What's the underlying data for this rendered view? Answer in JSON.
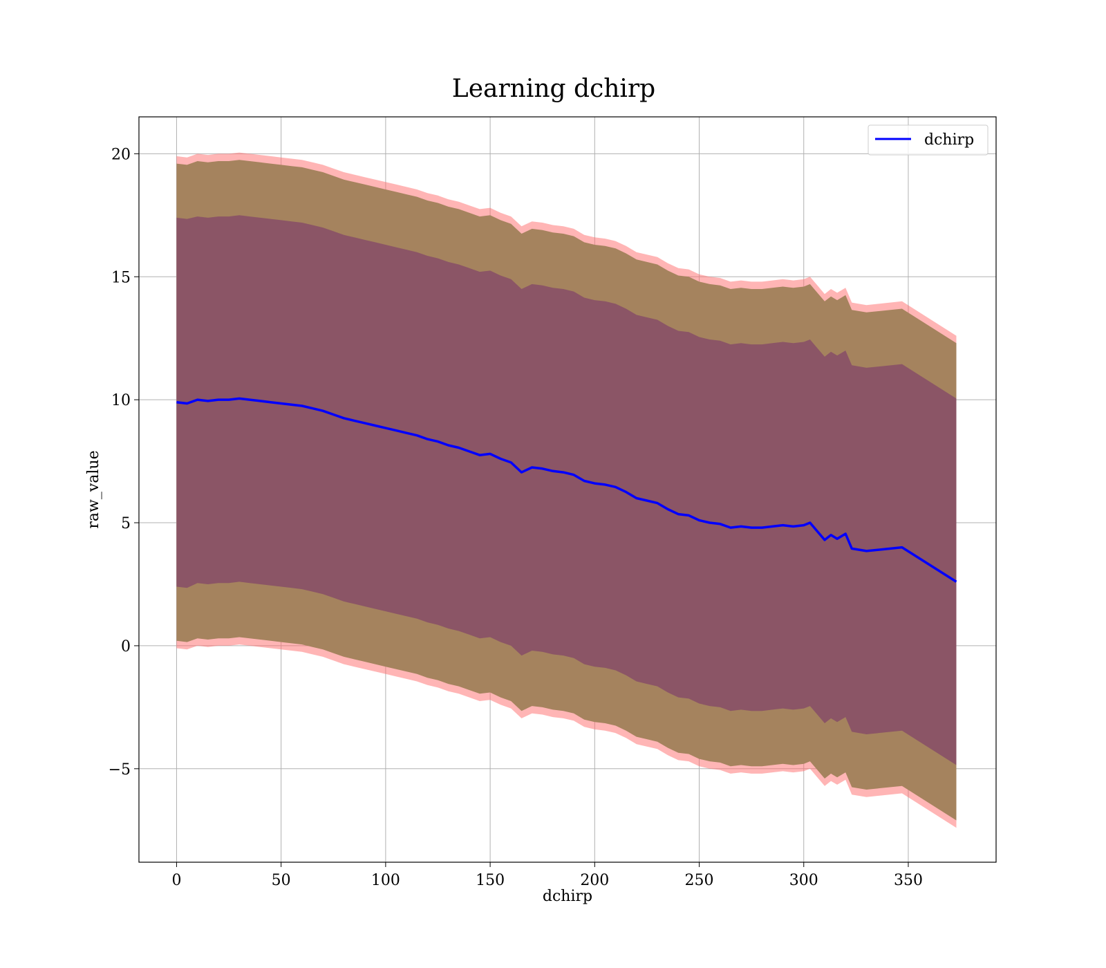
{
  "chart_data": {
    "type": "area",
    "title": "Learning dchirp",
    "xlabel": "dchirp",
    "ylabel": "raw_value",
    "xlim": [
      -18,
      392
    ],
    "ylim": [
      -8.8,
      21.5
    ],
    "xticks": [
      0,
      50,
      100,
      150,
      200,
      250,
      300,
      350
    ],
    "yticks": [
      -5,
      0,
      5,
      10,
      15,
      20
    ],
    "ytick_labels": [
      "−5",
      "0",
      "5",
      "10",
      "15",
      "20"
    ],
    "grid": true,
    "legend": {
      "position": "top-right",
      "entries": [
        "dchirp"
      ]
    },
    "colors": {
      "line": "#0000ff",
      "band_3sigma": "#ff6b6b",
      "band_2sigma": "#a5835e",
      "band_1sigma": "#8b5566",
      "grid": "#b0b0b0"
    },
    "series": [
      {
        "name": "dchirp",
        "x": [
          0,
          5,
          10,
          15,
          20,
          25,
          30,
          35,
          40,
          45,
          50,
          55,
          60,
          65,
          70,
          75,
          80,
          85,
          90,
          95,
          100,
          105,
          110,
          115,
          120,
          125,
          130,
          135,
          140,
          145,
          150,
          155,
          160,
          165,
          170,
          175,
          180,
          185,
          190,
          195,
          200,
          205,
          210,
          215,
          220,
          225,
          230,
          235,
          240,
          245,
          250,
          255,
          260,
          265,
          270,
          275,
          280,
          285,
          290,
          295,
          300,
          303,
          306,
          310,
          313,
          316,
          320,
          323,
          330,
          347,
          373
        ],
        "mean": [
          9.9,
          9.85,
          10.0,
          9.95,
          10.0,
          10.0,
          10.05,
          10.0,
          9.95,
          9.9,
          9.85,
          9.8,
          9.75,
          9.65,
          9.55,
          9.4,
          9.25,
          9.15,
          9.05,
          8.95,
          8.85,
          8.75,
          8.65,
          8.55,
          8.4,
          8.3,
          8.15,
          8.05,
          7.9,
          7.75,
          7.8,
          7.6,
          7.45,
          7.05,
          7.25,
          7.2,
          7.1,
          7.05,
          6.95,
          6.7,
          6.6,
          6.55,
          6.45,
          6.25,
          6.0,
          5.9,
          5.8,
          5.55,
          5.35,
          5.3,
          5.1,
          5.0,
          4.95,
          4.8,
          4.85,
          4.8,
          4.8,
          4.85,
          4.9,
          4.85,
          4.9,
          5.0,
          4.7,
          4.3,
          4.5,
          4.35,
          4.55,
          3.95,
          3.85,
          4.0,
          2.6
        ],
        "sigma1": [
          7.5,
          7.5,
          7.45,
          7.45,
          7.45,
          7.45,
          7.45,
          7.45,
          7.45,
          7.45,
          7.45,
          7.45,
          7.45,
          7.45,
          7.45,
          7.45,
          7.45,
          7.45,
          7.45,
          7.45,
          7.45,
          7.45,
          7.45,
          7.45,
          7.45,
          7.45,
          7.45,
          7.45,
          7.45,
          7.45,
          7.45,
          7.45,
          7.45,
          7.45,
          7.45,
          7.45,
          7.45,
          7.45,
          7.45,
          7.45,
          7.45,
          7.45,
          7.45,
          7.45,
          7.45,
          7.45,
          7.45,
          7.45,
          7.45,
          7.45,
          7.45,
          7.45,
          7.45,
          7.45,
          7.45,
          7.45,
          7.45,
          7.45,
          7.45,
          7.45,
          7.45,
          7.45,
          7.45,
          7.45,
          7.45,
          7.45,
          7.45,
          7.45,
          7.45,
          7.45,
          7.45
        ],
        "sigma2": [
          9.7,
          9.7,
          9.7,
          9.7,
          9.7,
          9.7,
          9.7,
          9.7,
          9.7,
          9.7,
          9.7,
          9.7,
          9.7,
          9.7,
          9.7,
          9.7,
          9.7,
          9.7,
          9.7,
          9.7,
          9.7,
          9.7,
          9.7,
          9.7,
          9.7,
          9.7,
          9.7,
          9.7,
          9.7,
          9.7,
          9.7,
          9.7,
          9.7,
          9.7,
          9.7,
          9.7,
          9.7,
          9.7,
          9.7,
          9.7,
          9.7,
          9.7,
          9.7,
          9.7,
          9.7,
          9.7,
          9.7,
          9.7,
          9.7,
          9.7,
          9.7,
          9.7,
          9.7,
          9.7,
          9.7,
          9.7,
          9.7,
          9.7,
          9.7,
          9.7,
          9.7,
          9.7,
          9.7,
          9.7,
          9.7,
          9.7,
          9.7,
          9.7,
          9.7,
          9.7,
          9.7
        ],
        "sigma3": [
          10.0,
          10.0,
          10.0,
          10.0,
          10.0,
          10.0,
          10.0,
          10.0,
          10.0,
          10.0,
          10.0,
          10.0,
          10.0,
          10.0,
          10.0,
          10.0,
          10.0,
          10.0,
          10.0,
          10.0,
          10.0,
          10.0,
          10.0,
          10.0,
          10.0,
          10.0,
          10.0,
          10.0,
          10.0,
          10.0,
          10.0,
          10.0,
          10.0,
          10.0,
          10.0,
          10.0,
          10.0,
          10.0,
          10.0,
          10.0,
          10.0,
          10.0,
          10.0,
          10.0,
          10.0,
          10.0,
          10.0,
          10.0,
          10.0,
          10.0,
          10.0,
          10.0,
          10.0,
          10.0,
          10.0,
          10.0,
          10.0,
          10.0,
          10.0,
          10.0,
          10.0,
          10.0,
          10.0,
          10.0,
          10.0,
          10.0,
          10.0,
          10.0,
          10.0,
          10.0,
          10.0
        ]
      }
    ]
  }
}
